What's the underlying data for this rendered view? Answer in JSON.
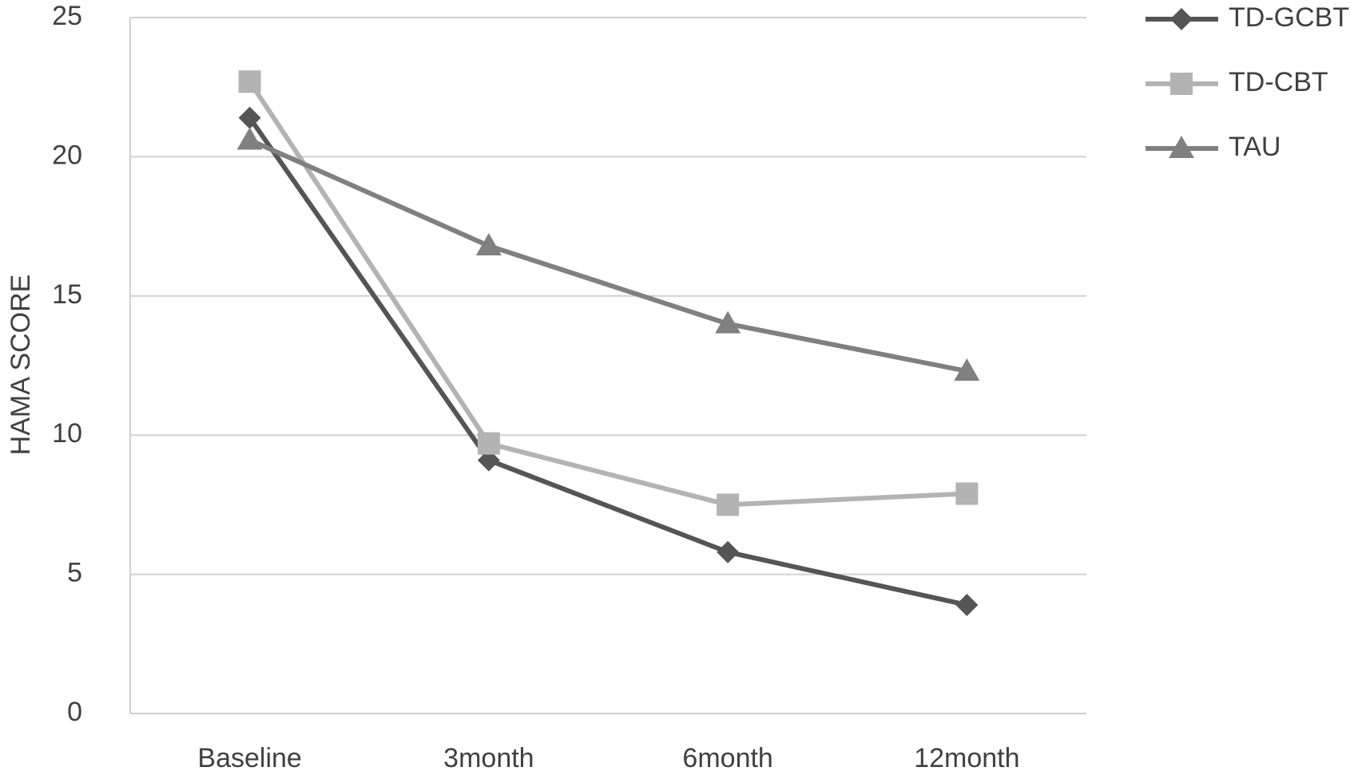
{
  "chart_data": {
    "type": "line",
    "y_label": "HAMA SCORE",
    "categories": [
      "Baseline",
      "3month",
      "6month",
      "12month"
    ],
    "series": [
      {
        "name": "TD-GCBT",
        "color": "#555555",
        "marker": "diamond",
        "values": [
          21.4,
          9.1,
          5.8,
          3.9
        ]
      },
      {
        "name": "TD-CBT",
        "color": "#b3b3b3",
        "marker": "square",
        "values": [
          22.7,
          9.7,
          7.5,
          7.9
        ]
      },
      {
        "name": "TAU",
        "color": "#808080",
        "marker": "triangle",
        "values": [
          20.6,
          16.8,
          14.0,
          12.3
        ]
      }
    ],
    "ylim": [
      0,
      25
    ],
    "yticks": [
      0,
      5,
      10,
      15,
      20,
      25
    ],
    "grid": true,
    "legend": "top-right"
  }
}
